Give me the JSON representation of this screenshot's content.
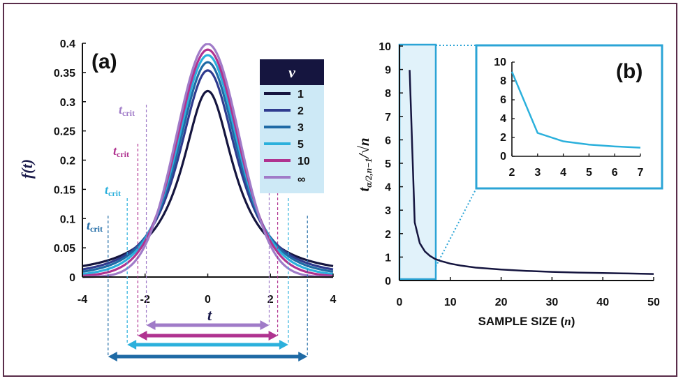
{
  "chart_data": [
    {
      "panel": "(a)",
      "type": "line",
      "xlabel": "t",
      "ylabel": "f(t)",
      "xlim": [
        -4,
        4
      ],
      "ylim": [
        0,
        0.4
      ],
      "xticks": [
        "-4",
        "-2",
        "0",
        "2",
        "4"
      ],
      "yticks": [
        "0",
        "0.05",
        "0.1",
        "0.15",
        "0.2",
        "0.25",
        "0.3",
        "0.35",
        "0.4"
      ],
      "legend": {
        "title": "ν",
        "placement": "top-right"
      },
      "series": [
        {
          "name": "1",
          "df": 1,
          "peak": 0.318,
          "color": "#15153f",
          "t_crit": null
        },
        {
          "name": "2",
          "df": 2,
          "peak": 0.354,
          "color": "#2f3b8f",
          "t_crit": null
        },
        {
          "name": "3",
          "df": 3,
          "peak": 0.368,
          "color": "#1f6aa5",
          "t_crit": 3.18
        },
        {
          "name": "5",
          "df": 5,
          "peak": 0.38,
          "color": "#2bb0dc",
          "t_crit": 2.57
        },
        {
          "name": "10",
          "df": 10,
          "peak": 0.389,
          "color": "#b03390",
          "t_crit": 2.23
        },
        {
          "name": "∞",
          "df": null,
          "peak": 0.399,
          "color": "#a07bc8",
          "t_crit": 1.96
        }
      ],
      "tcrit_label": "t",
      "tcrit_sub": "crit",
      "tcrit_label_colors": [
        "#1f6aa5",
        "#2bb0dc",
        "#b03390",
        "#a07bc8"
      ],
      "grid": false
    },
    {
      "panel": "(b)",
      "type": "line",
      "xlabel_text": "SAMPLE SIZE (",
      "xlabel_var": "n",
      "xlabel_close": ")",
      "ylabel_main": "t",
      "ylabel_sub": "α/2,n−1",
      "ylabel_tail": "/√n",
      "xlim": [
        0,
        50
      ],
      "ylim": [
        0,
        10
      ],
      "xticks": [
        "0",
        "10",
        "20",
        "30",
        "40",
        "50"
      ],
      "yticks": [
        "0",
        "1",
        "2",
        "3",
        "4",
        "5",
        "6",
        "7",
        "8",
        "9",
        "10"
      ],
      "series": [
        {
          "color": "#15153f",
          "x": [
            2,
            3,
            4,
            5,
            6,
            7,
            8,
            10,
            12,
            15,
            20,
            25,
            30,
            35,
            40,
            45,
            50
          ],
          "y": [
            8.98,
            2.48,
            1.59,
            1.24,
            1.05,
            0.92,
            0.84,
            0.72,
            0.64,
            0.55,
            0.47,
            0.41,
            0.37,
            0.34,
            0.32,
            0.3,
            0.28
          ]
        }
      ],
      "highlight_range": [
        0,
        7
      ],
      "grid": false,
      "inset": {
        "xlim": [
          2,
          7
        ],
        "ylim": [
          0,
          10
        ],
        "xticks": [
          "2",
          "3",
          "4",
          "5",
          "6",
          "7"
        ],
        "yticks": [
          "0",
          "2",
          "4",
          "6",
          "8",
          "10"
        ],
        "color": "#2bb0dc",
        "x": [
          2,
          3,
          4,
          5,
          6,
          7
        ],
        "y": [
          8.98,
          2.48,
          1.59,
          1.24,
          1.05,
          0.92
        ]
      }
    }
  ]
}
